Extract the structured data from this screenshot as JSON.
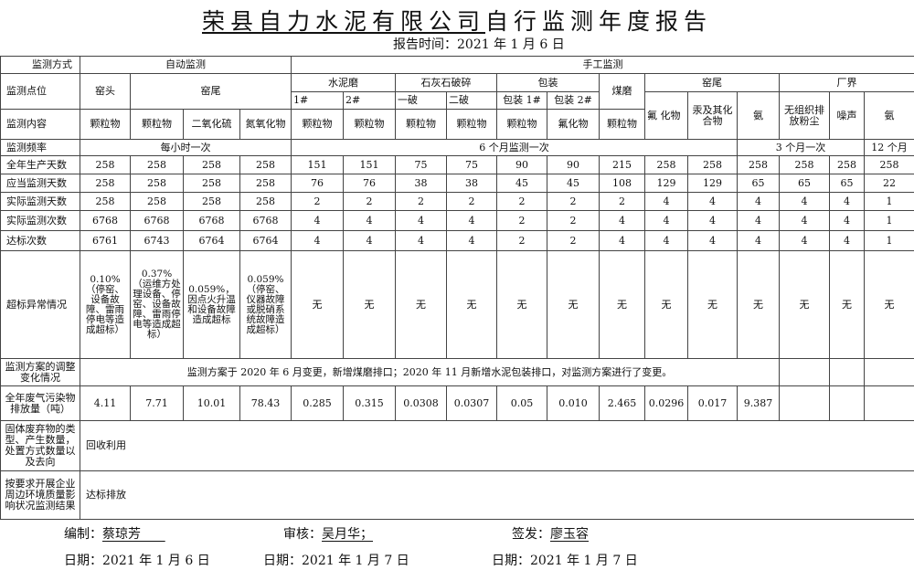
{
  "title": {
    "company": "荣县自力水泥有限公司",
    "rest": "自行监测年度报告"
  },
  "report_time": "报告时间：2021 年 1 月 6 日",
  "header": {
    "method_label": "监测方式",
    "auto": "自动监测",
    "manual": "手工监测",
    "point_label": "监测点位",
    "kiln_head": "窑头",
    "kiln_tail": "窑尾",
    "cement_mill": "水泥磨",
    "cm1": "1#",
    "cm2": "2#",
    "limestone": "石灰石破碎",
    "crush1": "一破",
    "crush2": "二破",
    "packing": "包装",
    "pack1": "包装 1#",
    "pack2": "包装 2#",
    "coal_mill": "煤磨",
    "kiln_tail2": "窑尾",
    "boundary": "厂界",
    "fluoride": "氟 化物",
    "mercury": "汞及其化合物",
    "ammonia": "氨",
    "fugitive_dust": "无组织排放粉尘",
    "noise": "噪声",
    "ammonia2": "氨",
    "content_label": "监测内容",
    "contents": [
      "颗粒物",
      "颗粒物",
      "二氧化硫",
      "氮氧化物",
      "颗粒物",
      "颗粒物",
      "颗粒物",
      "颗粒物",
      "颗粒物",
      "氟化物",
      "颗粒物"
    ],
    "freq_label": "监测频率",
    "freq_hourly": "每小时一次",
    "freq_6m": "6 个月监测一次",
    "freq_3m": "3 个月一次",
    "freq_12m": "12 个月"
  },
  "rows": [
    {
      "label": "全年生产天数",
      "values": [
        "258",
        "258",
        "258",
        "258",
        "151",
        "151",
        "75",
        "75",
        "90",
        "90",
        "215",
        "258",
        "258",
        "258",
        "258",
        "258",
        "258"
      ]
    },
    {
      "label": "应当监测天数",
      "values": [
        "258",
        "258",
        "258",
        "258",
        "76",
        "76",
        "38",
        "38",
        "45",
        "45",
        "108",
        "129",
        "129",
        "65",
        "65",
        "65",
        "22"
      ]
    },
    {
      "label": "实际监测天数",
      "values": [
        "258",
        "258",
        "258",
        "258",
        "2",
        "2",
        "2",
        "2",
        "2",
        "2",
        "2",
        "4",
        "4",
        "4",
        "4",
        "4",
        "1"
      ]
    },
    {
      "label": "实际监测次数",
      "values": [
        "6768",
        "6768",
        "6768",
        "6768",
        "4",
        "4",
        "4",
        "4",
        "2",
        "2",
        "4",
        "4",
        "4",
        "4",
        "4",
        "4",
        "1"
      ]
    },
    {
      "label": "达标次数",
      "values": [
        "6761",
        "6743",
        "6764",
        "6764",
        "4",
        "4",
        "4",
        "4",
        "2",
        "2",
        "4",
        "4",
        "4",
        "4",
        "4",
        "4",
        "1"
      ]
    }
  ],
  "abnormal": {
    "label": "超标异常情况",
    "values": [
      "0.10%（停窑、设备故障、雷雨停电等造成超标）",
      "0.37%（运维方处理设备、停窑、设备故障、雷雨停电等造成超标）",
      "0.059%，因点火升温和设备故障造成超标",
      "0.059%（停窑、仪器故障或脱硝系统故障造成超标）",
      "无",
      "无",
      "无",
      "无",
      "无",
      "无",
      "无",
      "无",
      "无",
      "无",
      "无",
      "无",
      "无"
    ]
  },
  "adjustment": {
    "label": "监测方案的调整变化情况",
    "text": "监测方案于 2020 年 6 月变更，新增煤磨排口；2020 年 11 月新增水泥包装排口，对监测方案进行了变更。"
  },
  "emission": {
    "label": "全年废气污染物排放量（吨）",
    "values": [
      "4.11",
      "7.71",
      "10.01",
      "78.43",
      "0.285",
      "0.315",
      "0.0308",
      "0.0307",
      "0.05",
      "0.010",
      "2.465",
      "0.0296",
      "0.017",
      "9.387",
      "",
      "",
      ""
    ]
  },
  "solid_waste": {
    "label": "固体废弃物的类型、产生数量，处置方式数量以及去向",
    "text": "回收利用"
  },
  "environment": {
    "label": "按要求开展企业周边环境质量影响状况监测结果",
    "text": "达标排放"
  },
  "footer": {
    "prepared_label": "编制：",
    "prepared_by": "蔡琼芳",
    "reviewed_label": "审核：",
    "reviewed_by": "吴月华；",
    "issued_label": "签发：",
    "issued_by": "廖玉容",
    "date1": "日期：2021 年 1 月 6 日",
    "date2": "日期：2021 年 1 月 7 日",
    "date3": "日期：2021 年 1 月 7 日"
  }
}
